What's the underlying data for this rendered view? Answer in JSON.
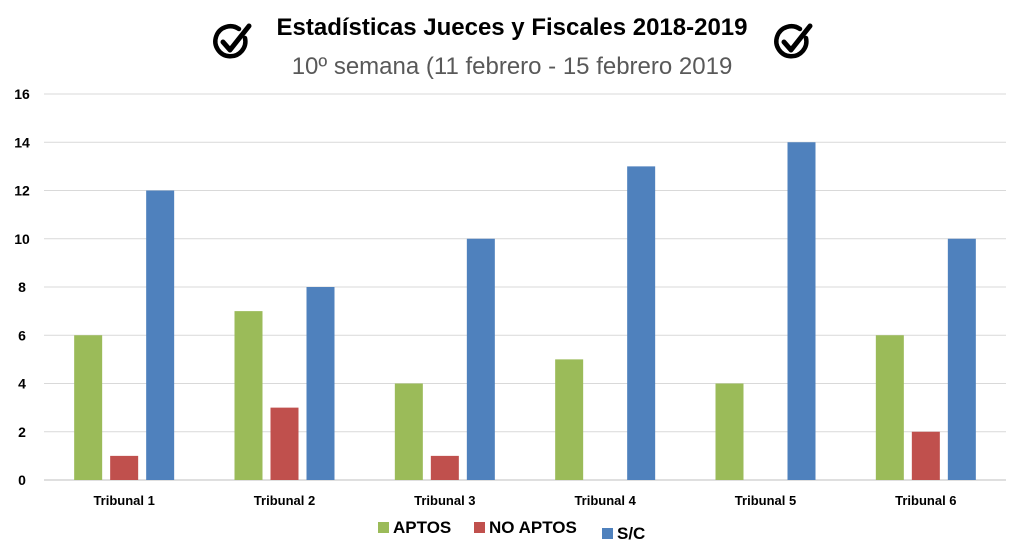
{
  "chart_data": {
    "type": "bar",
    "title": "Estadísticas Jueces y Fiscales 2018-2019",
    "subtitle": "10º semana (11 febrero - 15 febrero 2019",
    "categories": [
      "Tribunal 1",
      "Tribunal 2",
      "Tribunal 3",
      "Tribunal 4",
      "Tribunal 5",
      "Tribunal 6"
    ],
    "series": [
      {
        "name": "APTOS",
        "color": "#9BBB59",
        "values": [
          6,
          7,
          4,
          5,
          4,
          6
        ]
      },
      {
        "name": "NO APTOS",
        "color": "#C0504D",
        "values": [
          1,
          3,
          1,
          0,
          0,
          2
        ]
      },
      {
        "name": "S/C",
        "color": "#4F81BD",
        "values": [
          12,
          8,
          10,
          13,
          14,
          10
        ]
      }
    ],
    "ylim": [
      0,
      16
    ],
    "yticks": [
      0,
      2,
      4,
      6,
      8,
      10,
      12,
      14,
      16
    ],
    "grid": true,
    "legend": "bottom-center"
  },
  "icons": {
    "left": "check-circle-icon",
    "right": "check-circle-icon"
  }
}
